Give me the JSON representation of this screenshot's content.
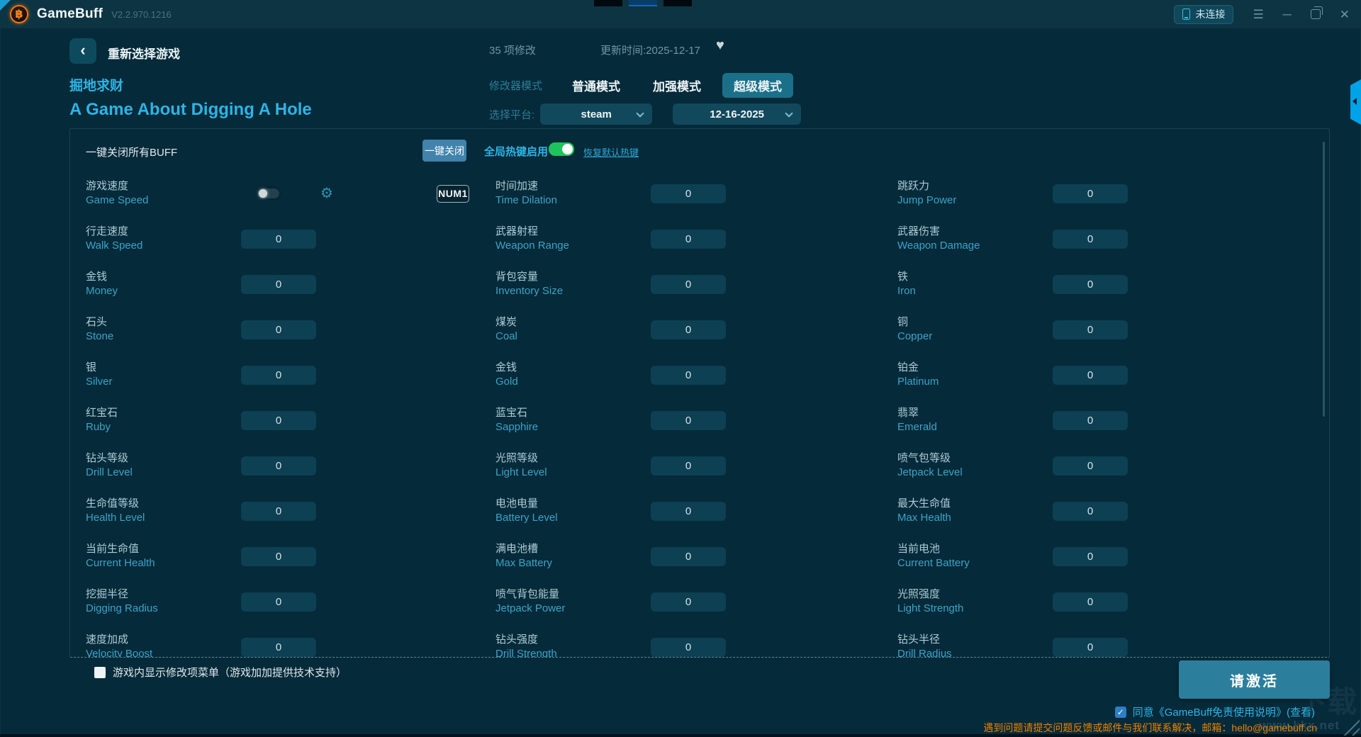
{
  "titlebar": {
    "app_name": "GameBuff",
    "version": "V2.2.970.1216",
    "connection": "未连接"
  },
  "icons": {
    "back": "‹",
    "heart": "♥",
    "gear": "⚙",
    "menu": "☰",
    "minimize": "─",
    "close": "✕",
    "check": "✓"
  },
  "header": {
    "reselect_game": "重新选择游戏",
    "mod_count": "35 项修改",
    "update_time": "更新时间:2025-12-17",
    "game_title_cn": "掘地求财",
    "game_title_en": "A Game About Digging A Hole",
    "mode_label": "修改器模式",
    "mode_normal": "普通模式",
    "mode_enhanced": "加强模式",
    "mode_super": "超级模式",
    "selected_mode": "超级模式",
    "platform_label": "选择平台:",
    "platform_value": "steam",
    "version_value": "12-16-2025"
  },
  "panel": {
    "close_all_label": "一键关闭所有BUFF",
    "close_all_button": "一键关闭",
    "global_hotkey_label": "全局热键启用",
    "global_hotkey_enabled": true,
    "restore_hotkey_link": "恢复默认热键",
    "options": [
      {
        "cn": "游戏速度",
        "en": "Game Speed",
        "control": "toggle",
        "toggle_on": false,
        "hotkey": "NUM1"
      },
      {
        "cn": "时间加速",
        "en": "Time Dilation",
        "value": "0"
      },
      {
        "cn": "跳跃力",
        "en": "Jump Power",
        "value": "0"
      },
      {
        "cn": "行走速度",
        "en": "Walk Speed",
        "value": "0"
      },
      {
        "cn": "武器射程",
        "en": "Weapon Range",
        "value": "0"
      },
      {
        "cn": "武器伤害",
        "en": "Weapon Damage",
        "value": "0"
      },
      {
        "cn": "金钱",
        "en": "Money",
        "value": "0"
      },
      {
        "cn": "背包容量",
        "en": "Inventory Size",
        "value": "0"
      },
      {
        "cn": "铁",
        "en": "Iron",
        "value": "0"
      },
      {
        "cn": "石头",
        "en": "Stone",
        "value": "0"
      },
      {
        "cn": "煤炭",
        "en": "Coal",
        "value": "0"
      },
      {
        "cn": "铜",
        "en": "Copper",
        "value": "0"
      },
      {
        "cn": "银",
        "en": "Silver",
        "value": "0"
      },
      {
        "cn": "金钱",
        "en": "Gold",
        "value": "0"
      },
      {
        "cn": "铂金",
        "en": "Platinum",
        "value": "0"
      },
      {
        "cn": "红宝石",
        "en": "Ruby",
        "value": "0"
      },
      {
        "cn": "蓝宝石",
        "en": "Sapphire",
        "value": "0"
      },
      {
        "cn": "翡翠",
        "en": "Emerald",
        "value": "0"
      },
      {
        "cn": "钻头等级",
        "en": "Drill Level",
        "value": "0"
      },
      {
        "cn": "光照等级",
        "en": "Light Level",
        "value": "0"
      },
      {
        "cn": "喷气包等级",
        "en": "Jetpack Level",
        "value": "0"
      },
      {
        "cn": "生命值等级",
        "en": "Health Level",
        "value": "0"
      },
      {
        "cn": "电池电量",
        "en": "Battery Level",
        "value": "0"
      },
      {
        "cn": "最大生命值",
        "en": "Max Health",
        "value": "0"
      },
      {
        "cn": "当前生命值",
        "en": "Current Health",
        "value": "0"
      },
      {
        "cn": "满电池槽",
        "en": "Max Battery",
        "value": "0"
      },
      {
        "cn": "当前电池",
        "en": "Current Battery",
        "value": "0"
      },
      {
        "cn": "挖掘半径",
        "en": "Digging Radius",
        "value": "0"
      },
      {
        "cn": "喷气背包能量",
        "en": "Jetpack Power",
        "value": "0"
      },
      {
        "cn": "光照强度",
        "en": "Light Strength",
        "value": "0"
      },
      {
        "cn": "速度加成",
        "en": "Velocity Boost",
        "value": "0"
      },
      {
        "cn": "钻头强度",
        "en": "Drill Strength",
        "value": "0"
      },
      {
        "cn": "钻头半径",
        "en": "Drill Radius",
        "value": "0"
      }
    ]
  },
  "footer": {
    "ingame_menu_label": "游戏内显示修改项菜单（游戏加加提供技术支持）",
    "ingame_menu_checked": false,
    "activate_button": "请激活",
    "agree_checked": true,
    "agree_text": "同意《GameBuff免责使用说明》(查看)",
    "support_text": "遇到问题请提交问题反馈或邮件与我们联系解决，邮箱：hello@gamebuff.cn",
    "watermark": "www.kkx.net",
    "watermark_logo": "下载"
  },
  "colors": {
    "accent_cyan": "#2db4e6",
    "toggle_on_green": "#1fc35c",
    "close_all_blue": "#4183ac",
    "activate_teal": "#2b7f9d",
    "warning_orange": "#ef8200",
    "side_tab_blue": "#00a2e8",
    "logo_orange": "#ee7718"
  }
}
